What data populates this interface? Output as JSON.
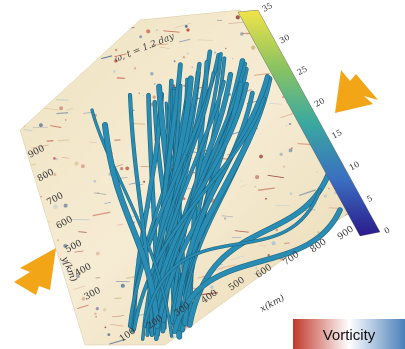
{
  "figure": {
    "title": "ω, t = 1.2 day",
    "x_axis_label": "x(km)",
    "y_axis_label": "y(km)",
    "x_ticks": [
      "100",
      "200",
      "300",
      "400",
      "500",
      "600",
      "700",
      "800",
      "900"
    ],
    "y_ticks": [
      "300",
      "400",
      "500",
      "600",
      "700",
      "800",
      "900"
    ],
    "colorbar_ticks": [
      "0",
      "5",
      "10",
      "15",
      "20",
      "25",
      "30",
      "35"
    ]
  },
  "legend": {
    "label": "Vorticity",
    "colors": [
      "#c0392b",
      "#ffffff",
      "#4a7fb8"
    ]
  },
  "arrows": {
    "color": "#f2a516",
    "names": [
      "right-arrow-icon",
      "left-arrow-icon"
    ]
  },
  "colors": {
    "background_field": "#f3e7c8",
    "tube": "#2a8fb7",
    "tube_dark": "#175a73",
    "colorbar": [
      "#2b1a8c",
      "#3a6fc0",
      "#3aa9a0",
      "#7cc46a",
      "#f2e34a"
    ]
  }
}
